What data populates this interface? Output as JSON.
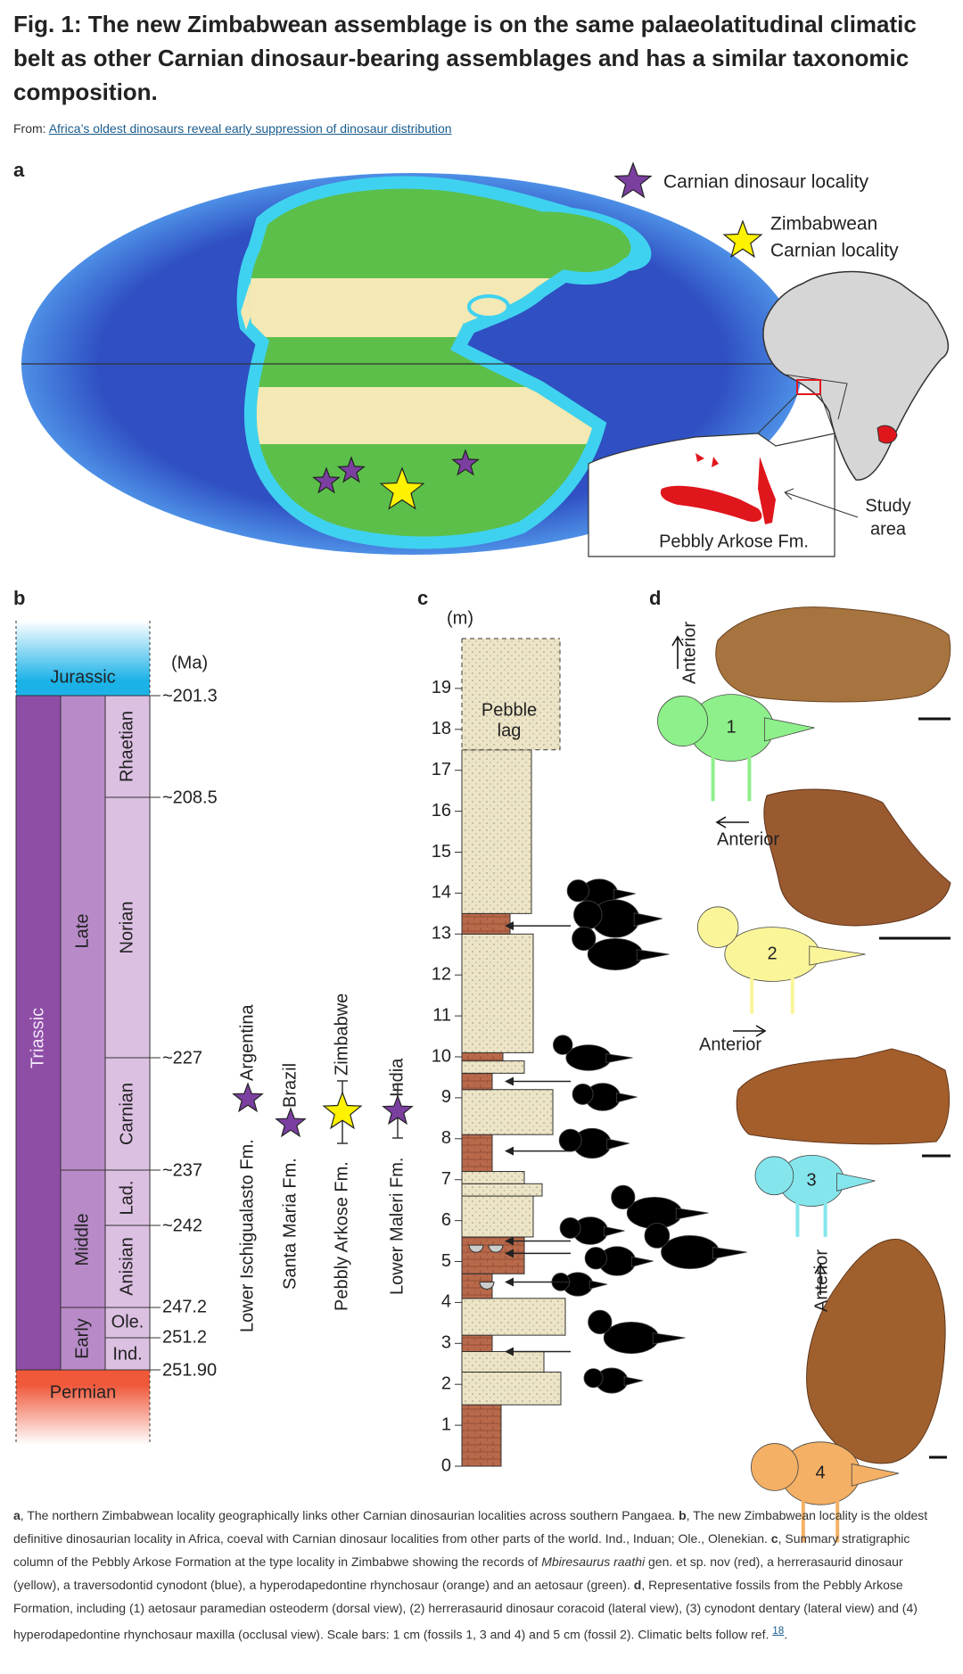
{
  "header": {
    "title": "Fig. 1: The new Zimbabwean assemblage is on the same palaeolatitudinal climatic belt as other Carnian dinosaur-bearing assemblages and has a similar taxonomic composition.",
    "from_label": "From:",
    "from_link": "Africa’s oldest dinosaurs reveal early suppression of dinosaur distribution"
  },
  "panels": {
    "a": {
      "label": "a",
      "legend": [
        "Carnian dinosaur locality",
        "Zimbabwean",
        "Carnian locality"
      ],
      "study_area": [
        "Study",
        "area"
      ],
      "formation": "Pebbly Arkose Fm."
    },
    "b": {
      "label": "b",
      "unit": "(Ma)",
      "periods": [
        "Jurassic",
        "Triassic",
        "Permian"
      ],
      "epochs": [
        "Late",
        "Middle",
        "Early"
      ],
      "stages": [
        "Rhaetian",
        "Norian",
        "Carnian",
        "Lad.",
        "Anisian",
        "Ole.",
        "Ind."
      ],
      "ages": [
        "~201.3",
        "~208.5",
        "~227",
        "~237",
        "~242",
        "247.2",
        "251.2",
        "251.90"
      ],
      "formations": [
        {
          "name": "Lower Ischigualasto Fm.",
          "country": "Argentina"
        },
        {
          "name": "Santa Maria Fm.",
          "country": "Brazil"
        },
        {
          "name": "Pebbly Arkose Fm.",
          "country": "Zimbabwe"
        },
        {
          "name": "Lower Maleri Fm.",
          "country": "India"
        }
      ]
    },
    "c": {
      "label": "c",
      "unit": "(m)",
      "ticks": [
        0,
        1,
        2,
        3,
        4,
        5,
        6,
        7,
        8,
        9,
        10,
        11,
        12,
        13,
        14,
        15,
        16,
        17,
        18,
        19
      ],
      "pebble_lag": [
        "Pebble",
        "lag"
      ]
    },
    "d": {
      "label": "d",
      "anterior": [
        "Anterior",
        "Anterior",
        "Anterior",
        "Anterior"
      ],
      "fossils": [
        1,
        2,
        3,
        4
      ]
    }
  },
  "caption": [
    "a",
    ", The northern Zimbabwean locality geographically links other Carnian dinosaurian localities across southern Pangaea. ",
    "b",
    ", The new Zimbabwean locality is the oldest definitive dinosaurian locality in Africa, coeval with Carnian dinosaur localities from other parts of the world. Ind., Induan; Ole., Olenekian. ",
    "c",
    ", Summary stratigraphic column of the Pebbly Arkose Formation at the type locality in Zimbabwe showing the records of ",
    "Mbiresaurus raathi",
    " gen. et sp. nov (red), a herrerasaurid dinosaur (yellow), a traversodontid cynodont (blue), a hyperodapedontine rhynchosaur (orange) and an aetosaur (green). ",
    "d",
    ", Representative fossils from the Pebbly Arkose Formation, including (1) aetosaur paramedian osteoderm (dorsal view), (2) herrerasaurid dinosaur coracoid (lateral view), (3) cynodont dentary (lateral view) and (4) hyperodapedontine rhynchosaur maxilla (occlusal view). Scale bars: 1 cm (fossils 1, 3 and 4) and 5 cm (fossil 2). Climatic belts follow ref. ",
    "18",
    "."
  ]
}
